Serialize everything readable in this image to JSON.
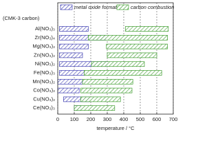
{
  "chart_data": {
    "type": "floating_bar",
    "annotation": "(CMK-3 carbon)",
    "categories": [
      "Al(NO₃)₃",
      "Zr(NO₃)₄",
      "Mg(NO₃)₂",
      "Zn(NO₃)₂",
      "Ni(NO₃)₂",
      "Fe(NO₃)₃",
      "Mn(NO₃)₂",
      "Co(NO₃)₂",
      "Cu(NO₃)₂",
      "Ce(NO₃)₃"
    ],
    "series": [
      {
        "name": "metal oxide formation",
        "color": "#3b3bb0",
        "low": [
          10,
          10,
          10,
          10,
          10,
          10,
          0,
          0,
          35,
          100
        ],
        "high": [
          185,
          290,
          185,
          150,
          300,
          160,
          150,
          130,
          190,
          140
        ]
      },
      {
        "name": "carbon combustion",
        "color": "#3a9a2a",
        "low": [
          410,
          185,
          295,
          300,
          205,
          160,
          150,
          140,
          140,
          100
        ],
        "high": [
          670,
          665,
          665,
          600,
          525,
          630,
          455,
          450,
          380,
          345
        ]
      }
    ],
    "xlabel": "temperature / °C",
    "xlim": [
      0,
      700
    ],
    "xticks": [
      0,
      100,
      200,
      300,
      400,
      500,
      600,
      700
    ],
    "grid": true
  }
}
